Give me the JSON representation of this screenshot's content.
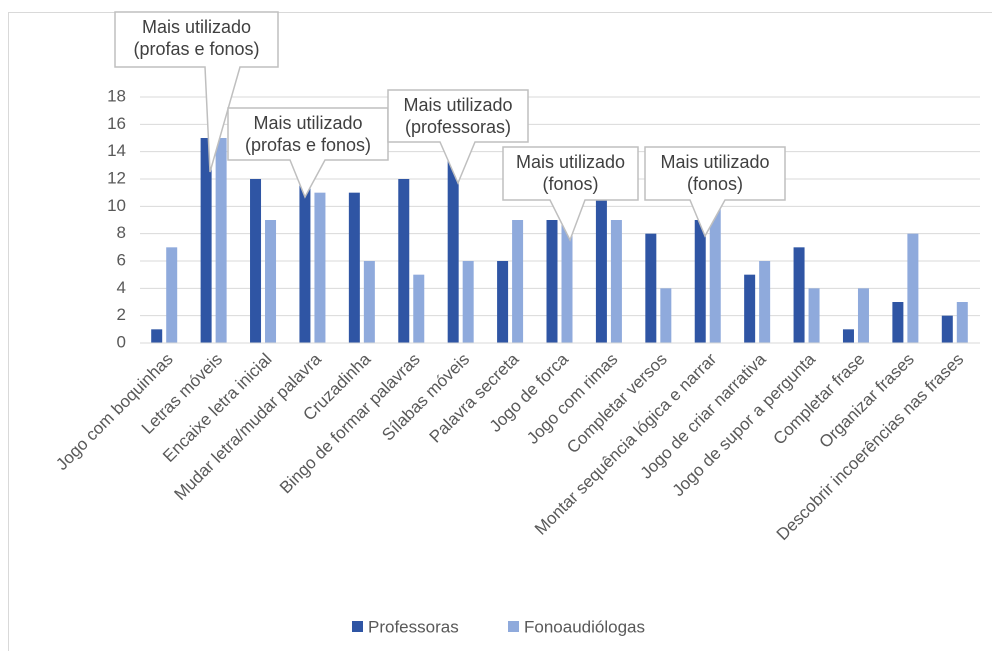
{
  "chart_data": {
    "type": "bar",
    "categories": [
      "Jogo com boquinhas",
      "Letras móveis",
      "Encaixe letra inicial",
      "Mudar letra/mudar palavra",
      "Cruzadinha",
      "Bingo de formar palavras",
      "Sílabas móveis",
      "Palavra secreta",
      "Jogo de forca",
      "Jogo com rimas",
      "Completar versos",
      "Montar sequência lógica e narrar",
      "Jogo de criar narrativa",
      "Jogo de supor a pergunta",
      "Completar frase",
      "Organizar frases",
      "Descobrir incoerências nas frases"
    ],
    "series": [
      {
        "name": "Professoras",
        "color": "#2f55a4",
        "values": [
          1,
          15,
          12,
          13,
          11,
          12,
          14,
          6,
          9,
          11,
          8,
          9,
          5,
          7,
          1,
          3,
          2
        ]
      },
      {
        "name": "Fonoaudiólogas",
        "color": "#8faadc",
        "values": [
          7,
          15,
          9,
          11,
          6,
          5,
          6,
          9,
          10,
          9,
          4,
          10,
          6,
          4,
          4,
          8,
          3
        ]
      }
    ],
    "ylim": [
      0,
      18
    ],
    "yticks": [
      0,
      2,
      4,
      6,
      8,
      10,
      12,
      14,
      16,
      18
    ],
    "grid": true,
    "legend": "bottom",
    "annotations": [
      {
        "lines": [
          "Mais utilizado",
          "(profas e fonos)"
        ]
      },
      {
        "lines": [
          "Mais utilizado",
          "(profas e fonos)"
        ]
      },
      {
        "lines": [
          "Mais utilizado",
          "(professoras)"
        ]
      },
      {
        "lines": [
          "Mais utilizado",
          "(fonos)"
        ]
      },
      {
        "lines": [
          "Mais utilizado",
          "(fonos)"
        ]
      }
    ]
  }
}
